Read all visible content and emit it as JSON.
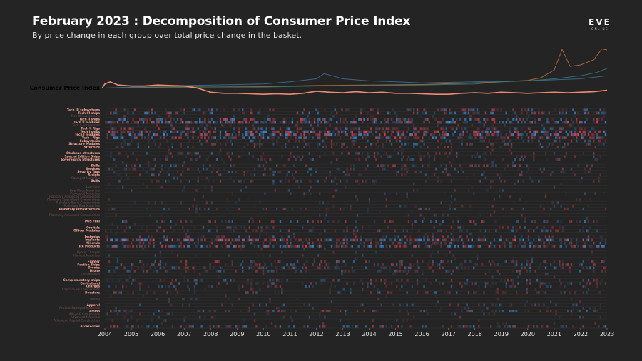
{
  "header": {
    "title": "February 2023 : Decomposition of Consumer Price Index",
    "subtitle": "By price change in each group over total price change in the basket."
  },
  "logo": {
    "main": "EVE",
    "sub": "ONLINE"
  },
  "colors": {
    "background": "#242424",
    "cpi_line": "#f08a72",
    "increase": "#d9434e",
    "decrease": "#3d8fe0",
    "grid": "#3a3a3a"
  },
  "chart_data": {
    "type": "heatmap",
    "title": "February 2023 : Decomposition of Consumer Price Index",
    "subtitle": "By price change in each group over total price change in the basket.",
    "x_ticks": [
      "2004",
      "2005",
      "2006",
      "2007",
      "2008",
      "2009",
      "2010",
      "2011",
      "2012",
      "2013",
      "2014",
      "2015",
      "2016",
      "2017",
      "2018",
      "2019",
      "2020",
      "2021",
      "2022",
      "2023"
    ],
    "xlim": [
      2004,
      2023
    ],
    "line_series": [
      {
        "name": "Consumer Price Index",
        "x": [
          2003.9,
          2004.0,
          2004.2,
          2004.5,
          2005,
          2005.5,
          2006,
          2006.5,
          2007,
          2007.5,
          2008,
          2008.5,
          2009,
          2009.5,
          2010,
          2010.5,
          2011,
          2011.5,
          2012,
          2012.5,
          2013,
          2013.5,
          2014,
          2014.5,
          2015,
          2015.5,
          2016,
          2016.5,
          2017,
          2017.5,
          2018,
          2018.5,
          2019,
          2019.5,
          2020,
          2020.5,
          2021,
          2021.5,
          2022,
          2022.5,
          2023
        ],
        "values": [
          100,
          108,
          112,
          106,
          104,
          104,
          106,
          105,
          104,
          100,
          92,
          90,
          90,
          89,
          88,
          89,
          88,
          90,
          94,
          92,
          91,
          93,
          91,
          92,
          90,
          90,
          89,
          88,
          88,
          90,
          91,
          90,
          92,
          91,
          90,
          91,
          92,
          91,
          92,
          93,
          96
        ]
      },
      {
        "name": "",
        "x": [
          2004,
          2006,
          2008,
          2010,
          2012,
          2014,
          2016,
          2018,
          2019,
          2020,
          2020.5,
          2021,
          2021.3,
          2021.6,
          2022,
          2022.5,
          2022.8,
          2023
        ],
        "values": [
          100,
          102,
          104,
          103,
          105,
          106,
          107,
          110,
          112,
          115,
          120,
          135,
          175,
          142,
          145,
          155,
          176,
          174
        ]
      },
      {
        "name": "",
        "x": [
          2004,
          2006,
          2008,
          2010,
          2011,
          2012,
          2012.3,
          2013,
          2014,
          2015,
          2016,
          2018,
          2020,
          2021,
          2022,
          2023
        ],
        "values": [
          100,
          104,
          106,
          108,
          112,
          118,
          128,
          118,
          114,
          112,
          110,
          112,
          114,
          116,
          118,
          124
        ]
      },
      {
        "name": "",
        "x": [
          2004,
          2006,
          2008,
          2010,
          2012,
          2014,
          2016,
          2018,
          2019,
          2020,
          2021,
          2022,
          2022.6,
          2023
        ],
        "values": [
          100,
          101,
          102,
          102,
          104,
          105,
          106,
          108,
          112,
          114,
          118,
          124,
          130,
          138
        ]
      }
    ],
    "rows": [
      {
        "label": "Tech III subsystems",
        "highlight": true,
        "activity": 0.5
      },
      {
        "label": "Tech III ships",
        "highlight": true,
        "activity": 0.6
      },
      {
        "label": "Tech III Subsystems",
        "highlight": false,
        "activity": 0.1
      },
      {
        "label": "Tech II ships",
        "highlight": true,
        "activity": 0.8
      },
      {
        "label": "Tech II modules",
        "highlight": true,
        "activity": 0.9
      },
      {
        "label": "Tech II accessories",
        "highlight": false,
        "activity": 0.15
      },
      {
        "label": "Tech II Rigs",
        "highlight": true,
        "activity": 0.6
      },
      {
        "label": "Tech I ships",
        "highlight": true,
        "activity": 1.0
      },
      {
        "label": "Tech I modules",
        "highlight": true,
        "activity": 1.0
      },
      {
        "label": "Tech I Rigs",
        "highlight": true,
        "activity": 0.8
      },
      {
        "label": "Subsystems",
        "highlight": true,
        "activity": 0.4
      },
      {
        "label": "Structure Modules",
        "highlight": true,
        "activity": 0.4
      },
      {
        "label": "Structure",
        "highlight": true,
        "activity": 0.4
      },
      {
        "label": "",
        "highlight": false,
        "activity": 0.05
      },
      {
        "label": "Starbase structures",
        "highlight": true,
        "activity": 0.4
      },
      {
        "label": "Special Edition Ships",
        "highlight": true,
        "activity": 0.3
      },
      {
        "label": "Sovereignty Structures",
        "highlight": true,
        "activity": 0.3
      },
      {
        "label": "",
        "highlight": false,
        "activity": 0.05
      },
      {
        "label": "Skills",
        "highlight": true,
        "activity": 0.5
      },
      {
        "label": "Services",
        "highlight": true,
        "activity": 0.3
      },
      {
        "label": "Security Tags",
        "highlight": true,
        "activity": 0.3
      },
      {
        "label": "Scripts",
        "highlight": true,
        "activity": 0.3
      },
      {
        "label": "Salvaged Materials",
        "highlight": false,
        "activity": 0.1
      },
      {
        "label": "Skills",
        "highlight": true,
        "activity": 0.3
      },
      {
        "label": "",
        "highlight": false,
        "activity": 0.05
      },
      {
        "label": "Reactions",
        "highlight": false,
        "activity": 0.1
      },
      {
        "label": "Raw Moon Materials",
        "highlight": false,
        "activity": 0.1
      },
      {
        "label": "Processed Materials",
        "highlight": false,
        "activity": 0.1
      },
      {
        "label": "Planetary Advanced Commodities",
        "highlight": false,
        "activity": 0.1
      },
      {
        "label": "Planetary Specialized Commodities",
        "highlight": false,
        "activity": 0.1
      },
      {
        "label": "Planetary Basic Commodities",
        "highlight": false,
        "activity": 0.1
      },
      {
        "label": "Planetary Raw Materials",
        "highlight": false,
        "activity": 0.1
      },
      {
        "label": "Planetary Infrastructure",
        "highlight": true,
        "activity": 0.3
      },
      {
        "label": "",
        "highlight": false,
        "activity": 0.05
      },
      {
        "label": "Planetary Advanced Commodities",
        "highlight": false,
        "activity": 0.1
      },
      {
        "label": "",
        "highlight": false,
        "activity": 0.05
      },
      {
        "label": "POS Fuel",
        "highlight": true,
        "activity": 0.5
      },
      {
        "label": "",
        "highlight": false,
        "activity": 0.05
      },
      {
        "label": "Orbitals",
        "highlight": true,
        "activity": 0.3
      },
      {
        "label": "Officer Modules",
        "highlight": true,
        "activity": 0.4
      },
      {
        "label": "",
        "highlight": false,
        "activity": 0.05
      },
      {
        "label": "Insignias",
        "highlight": true,
        "activity": 0.4
      },
      {
        "label": "Implants",
        "highlight": true,
        "activity": 1.0
      },
      {
        "label": "Minerals",
        "highlight": true,
        "activity": 0.5
      },
      {
        "label": "Ice Products",
        "highlight": true,
        "activity": 0.9
      },
      {
        "label": "",
        "highlight": false,
        "activity": 0.05
      },
      {
        "label": "Hybrid Charges",
        "highlight": false,
        "activity": 0.1
      },
      {
        "label": "Harvest Materials",
        "highlight": false,
        "activity": 0.1
      },
      {
        "label": "",
        "highlight": false,
        "activity": 0.05
      },
      {
        "label": "Fighter",
        "highlight": true,
        "activity": 0.4
      },
      {
        "label": "Faction Ships",
        "highlight": true,
        "activity": 0.5
      },
      {
        "label": "Drones",
        "highlight": true,
        "activity": 0.5
      },
      {
        "label": "Drone",
        "highlight": true,
        "activity": 0.4
      },
      {
        "label": "Deployables",
        "highlight": false,
        "activity": 0.1
      },
      {
        "label": "",
        "highlight": false,
        "activity": 0.05
      },
      {
        "label": "Complementary ships",
        "highlight": true,
        "activity": 0.4
      },
      {
        "label": "Contraband",
        "highlight": true,
        "activity": 0.4
      },
      {
        "label": "Charges",
        "highlight": true,
        "activity": 0.3
      },
      {
        "label": "Capital Ship Components",
        "highlight": false,
        "activity": 0.1
      },
      {
        "label": "Boosters",
        "highlight": true,
        "activity": 0.4
      },
      {
        "label": "",
        "highlight": false,
        "activity": 0.05
      },
      {
        "label": "Ammo",
        "highlight": false,
        "activity": 0.1
      },
      {
        "label": "",
        "highlight": false,
        "activity": 0.05
      },
      {
        "label": "Apparel",
        "highlight": true,
        "activity": 0.3
      },
      {
        "label": "Ancient Salvaged Materials",
        "highlight": false,
        "activity": 0.1
      },
      {
        "label": "Ammo",
        "highlight": true,
        "activity": 0.5
      },
      {
        "label": "Alloys & Compounds",
        "highlight": false,
        "activity": 0.1
      },
      {
        "label": "Advanced Materials",
        "highlight": false,
        "activity": 0.1
      },
      {
        "label": "Advanced Capital Construction",
        "highlight": false,
        "activity": 0.1
      },
      {
        "label": "",
        "highlight": false,
        "activity": 0.05
      },
      {
        "label": "Accessories",
        "highlight": true,
        "activity": 0.6
      }
    ]
  }
}
